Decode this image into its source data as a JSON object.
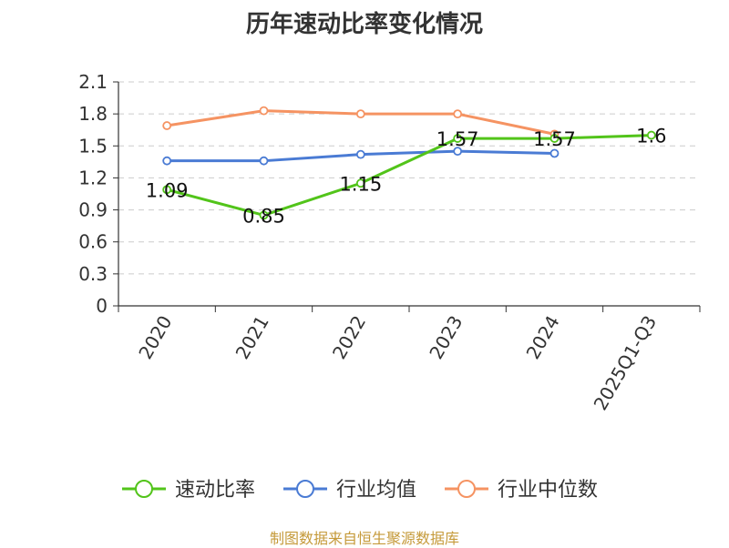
{
  "chart_data": {
    "type": "line",
    "title": "历年速动比率变化情况",
    "categories": [
      "2020",
      "2021",
      "2022",
      "2023",
      "2024",
      "2025Q1-Q3"
    ],
    "yticks": [
      "0",
      "0.3",
      "0.6",
      "0.9",
      "1.2",
      "1.5",
      "1.8",
      "2.1"
    ],
    "ylim": [
      0,
      2.1
    ],
    "grid": true,
    "legend_position": "bottom",
    "series": [
      {
        "name": "速动比率",
        "color": "#52c41a",
        "values": [
          1.09,
          0.85,
          1.15,
          1.57,
          1.57,
          1.6
        ],
        "labels": [
          "1.09",
          "0.85",
          "1.15",
          "1.57",
          "1.57",
          "1.6"
        ]
      },
      {
        "name": "行业均值",
        "color": "#4a7bd4",
        "values": [
          1.36,
          1.36,
          1.42,
          1.45,
          1.43,
          null
        ]
      },
      {
        "name": "行业中位数",
        "color": "#f59362",
        "values": [
          1.69,
          1.83,
          1.8,
          1.8,
          1.61,
          null
        ]
      }
    ]
  },
  "source": "制图数据来自恒生聚源数据库"
}
